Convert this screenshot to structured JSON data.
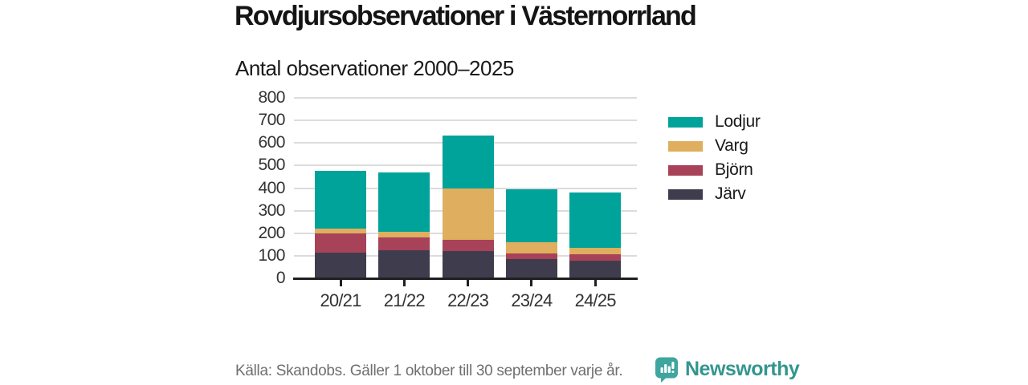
{
  "header": {
    "title": "Rovdjursobservationer i Västernorrland",
    "subtitle": "Antal observationer 2000–2025"
  },
  "chart_data": {
    "type": "bar",
    "stacked": true,
    "title": "Rovdjursobservationer i Västernorrland",
    "subtitle": "Antal observationer 2000–2025",
    "categories": [
      "20/21",
      "21/22",
      "22/23",
      "23/24",
      "24/25"
    ],
    "series": [
      {
        "name": "Järv",
        "color": "#3f3d4d",
        "values": [
          115,
          125,
          120,
          85,
          80
        ]
      },
      {
        "name": "Björn",
        "color": "#a84259",
        "values": [
          85,
          55,
          52,
          25,
          25
        ]
      },
      {
        "name": "Varg",
        "color": "#dfae5e",
        "values": [
          22,
          27,
          225,
          50,
          30
        ]
      },
      {
        "name": "Lodjur",
        "color": "#00a39a",
        "values": [
          253,
          263,
          236,
          235,
          245
        ]
      }
    ],
    "totals": [
      475,
      470,
      633,
      395,
      380
    ],
    "ylim": [
      0,
      800
    ],
    "yticks": [
      0,
      100,
      200,
      300,
      400,
      500,
      600,
      700,
      800
    ],
    "grid": true,
    "legend_position": "right",
    "legend_order": [
      "Lodjur",
      "Varg",
      "Björn",
      "Järv"
    ]
  },
  "legend": {
    "items": [
      {
        "label": "Lodjur",
        "color": "#00a39a"
      },
      {
        "label": "Varg",
        "color": "#dfae5e"
      },
      {
        "label": "Björn",
        "color": "#a84259"
      },
      {
        "label": "Järv",
        "color": "#3f3d4d"
      }
    ]
  },
  "footer": {
    "source": "Källa: Skandobs. Gäller 1 oktober till 30 september varje år.",
    "brand": "Newsworthy"
  },
  "colors": {
    "lodjur_teal": "#00a39a",
    "varg_gold": "#dfae5e",
    "bjorn_maroon": "#a84259",
    "jarv_slate": "#3f3d4d",
    "grid": "#dcdcdc",
    "axis": "#1f1f1f",
    "axis_text": "#333333",
    "source_text": "#6f6f6f",
    "logo_bubble": "#3ea69e",
    "brand_text": "#33968e"
  }
}
